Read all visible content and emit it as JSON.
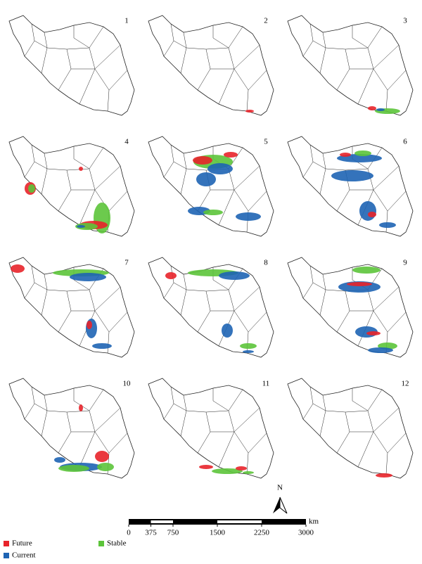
{
  "panels": [
    1,
    2,
    3,
    4,
    5,
    6,
    7,
    8,
    9,
    10,
    11,
    12
  ],
  "north": "N",
  "scale": {
    "unit": "km",
    "ticks": [
      0,
      375,
      750,
      1500,
      2250,
      3000
    ]
  },
  "legend": [
    {
      "label": "Future",
      "color": "#e8232a"
    },
    {
      "label": "Current",
      "color": "#1e64b4"
    },
    {
      "label": "Stable",
      "color": "#5cc43a"
    }
  ]
}
